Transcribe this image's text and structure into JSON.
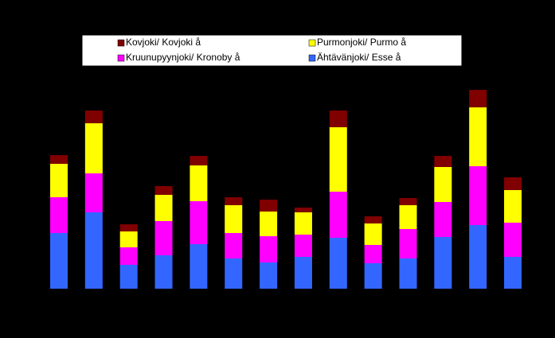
{
  "chart_data": {
    "type": "stacked_bar",
    "categories": [
      null,
      null,
      null,
      null,
      null,
      null,
      null,
      null,
      null,
      null,
      null,
      null,
      null,
      null
    ],
    "series": [
      {
        "name": "Ähtävänjoki/ Esse å",
        "color": "#3366ff",
        "values": [
          70,
          96,
          30,
          42,
          56,
          38,
          33,
          40,
          64,
          32,
          38,
          65,
          80,
          40
        ]
      },
      {
        "name": "Kruunupyynjoki/ Kronoby å",
        "color": "#ff00ff",
        "values": [
          45,
          49,
          22,
          43,
          54,
          32,
          33,
          28,
          58,
          23,
          37,
          44,
          74,
          43
        ]
      },
      {
        "name": "Purmonjoki/ Purmo å",
        "color": "#ffff00",
        "values": [
          42,
          63,
          20,
          33,
          45,
          35,
          31,
          28,
          81,
          27,
          30,
          44,
          74,
          41
        ]
      },
      {
        "name": "Kovjoki/ Kovjoki å",
        "color": "#800000",
        "values": [
          11,
          16,
          9,
          11,
          12,
          10,
          15,
          6,
          21,
          9,
          9,
          14,
          22,
          16
        ]
      }
    ]
  }
}
